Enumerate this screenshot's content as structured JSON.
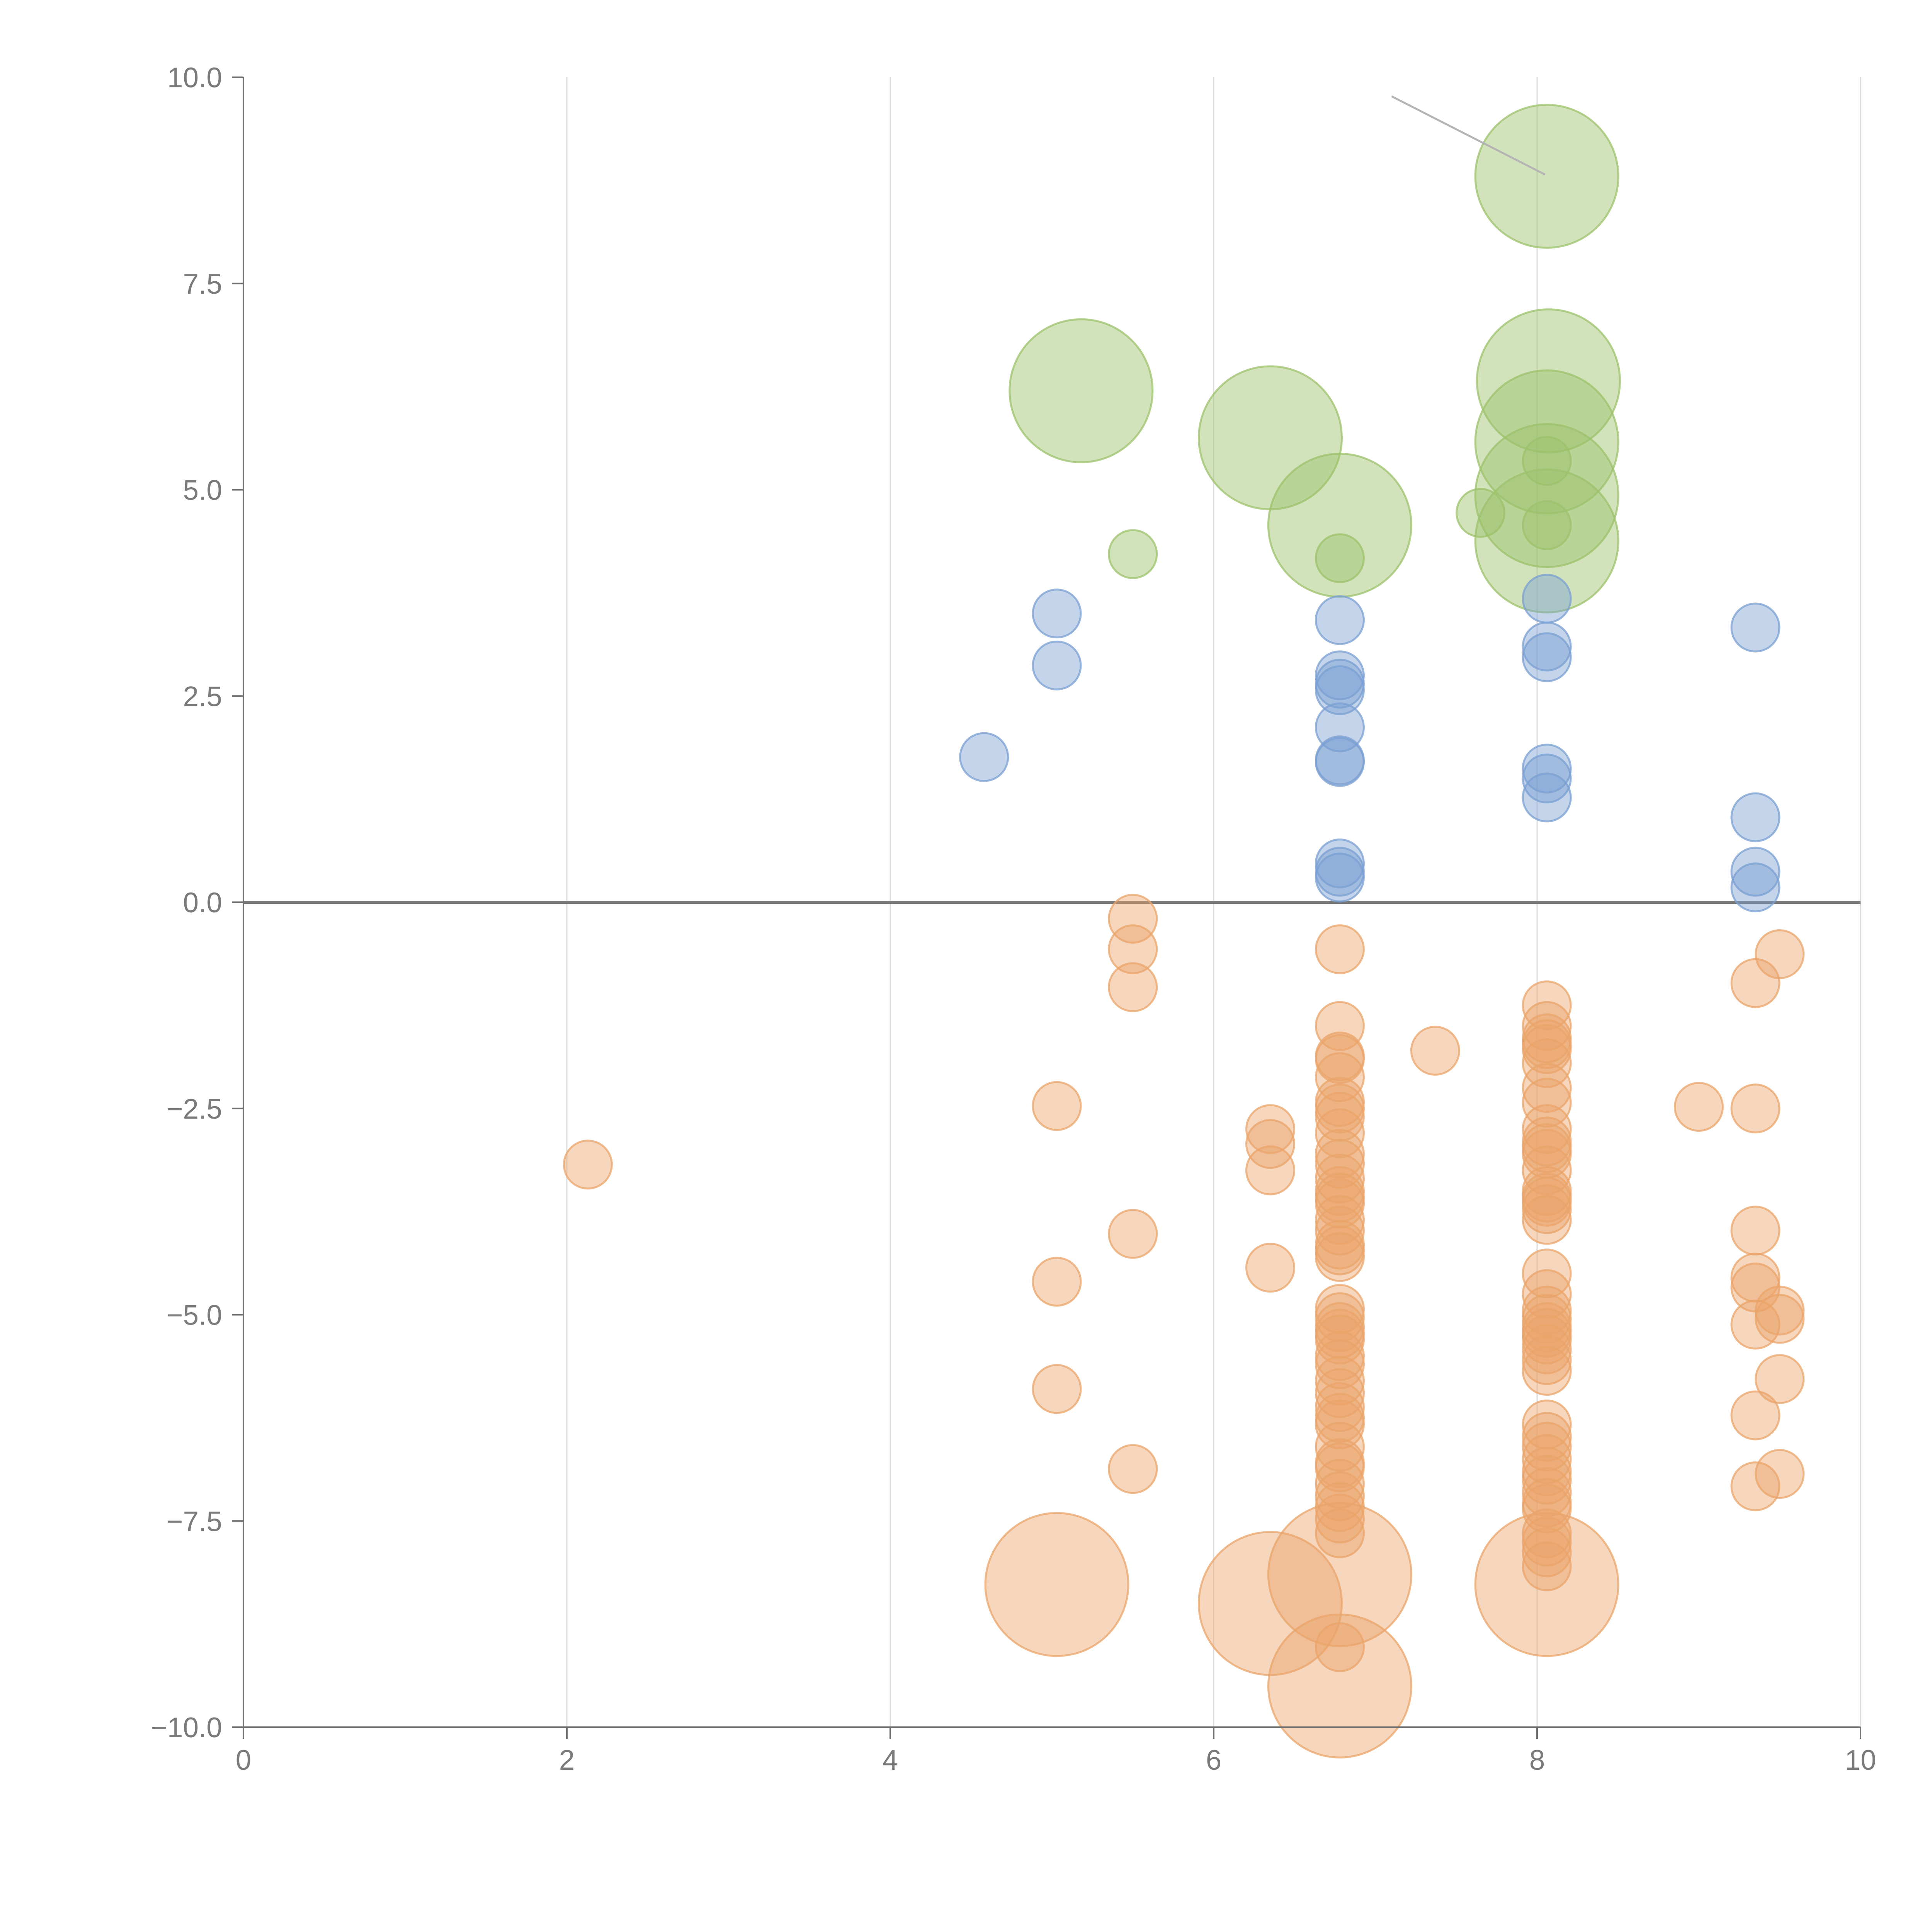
{
  "chart_data": {
    "type": "scatter",
    "title": "",
    "xlabel": "",
    "ylabel": "",
    "xlim": [
      0,
      10
    ],
    "ylim": [
      -10,
      10
    ],
    "x_ticks": [
      0,
      2,
      4,
      6,
      8,
      10
    ],
    "x_tick_labels": [
      "0",
      "2",
      "4",
      "6",
      "8",
      "10"
    ],
    "y_ticks": [
      10,
      7.5,
      5,
      2.5,
      0,
      -2.5,
      -5,
      -7.5,
      -10
    ],
    "y_tick_labels": [
      "10.0",
      "7.5",
      "5.0",
      "2.5",
      "0.0",
      "−2.5",
      "−5.0",
      "−7.5",
      "−10.0"
    ],
    "grid": "vertical",
    "zero_line": 0,
    "annotation": {
      "from": [
        7.1,
        9.77
      ],
      "to": [
        8.05,
        8.82
      ]
    },
    "series": [
      {
        "name": "green",
        "color": "#9cc26b",
        "points": [
          [
            8.06,
            8.8,
            2
          ],
          [
            5.18,
            6.2,
            2
          ],
          [
            8.07,
            6.32,
            2
          ],
          [
            6.35,
            5.63,
            2
          ],
          [
            8.06,
            5.58,
            2
          ],
          [
            8.06,
            5.35,
            0.8
          ],
          [
            8.06,
            4.93,
            2
          ],
          [
            6.78,
            4.57,
            2
          ],
          [
            7.65,
            4.72,
            0.8
          ],
          [
            8.06,
            4.38,
            2
          ],
          [
            8.06,
            4.57,
            0.8
          ],
          [
            6.78,
            4.17,
            0.8
          ],
          [
            5.5,
            4.22,
            0.8
          ]
        ]
      },
      {
        "name": "blue",
        "color": "#7a9fd2",
        "points": [
          [
            5.03,
            3.5,
            0.8
          ],
          [
            5.03,
            2.87,
            0.8
          ],
          [
            4.58,
            1.76,
            0.8
          ],
          [
            6.78,
            3.42,
            0.8
          ],
          [
            6.78,
            2.75,
            0.8
          ],
          [
            6.78,
            2.65,
            0.8
          ],
          [
            6.78,
            2.57,
            0.8
          ],
          [
            6.78,
            2.12,
            0.8
          ],
          [
            6.78,
            1.72,
            0.8
          ],
          [
            6.78,
            1.7,
            0.8
          ],
          [
            6.78,
            0.47,
            0.8
          ],
          [
            6.78,
            0.37,
            0.8
          ],
          [
            6.78,
            0.3,
            0.8
          ],
          [
            8.06,
            3.68,
            0.8
          ],
          [
            8.06,
            3.1,
            0.8
          ],
          [
            8.06,
            2.97,
            0.8
          ],
          [
            8.06,
            1.62,
            0.8
          ],
          [
            8.06,
            1.5,
            0.8
          ],
          [
            8.06,
            1.27,
            0.8
          ],
          [
            9.35,
            3.33,
            0.8
          ],
          [
            9.35,
            1.03,
            0.8
          ],
          [
            9.35,
            0.37,
            0.8
          ],
          [
            9.35,
            0.18,
            0.8
          ]
        ]
      },
      {
        "name": "orange",
        "color": "#eaa46a",
        "points": [
          [
            2.13,
            -3.18,
            0.8
          ],
          [
            5.03,
            -2.47,
            0.8
          ],
          [
            5.03,
            -4.6,
            0.8
          ],
          [
            5.03,
            -5.9,
            0.8
          ],
          [
            5.03,
            -8.27,
            2
          ],
          [
            5.5,
            -0.2,
            0.8
          ],
          [
            5.5,
            -0.57,
            0.8
          ],
          [
            5.5,
            -1.03,
            0.8
          ],
          [
            5.5,
            -4.02,
            0.8
          ],
          [
            5.5,
            -6.87,
            0.8
          ],
          [
            6.35,
            -2.75,
            0.8
          ],
          [
            6.35,
            -2.93,
            0.8
          ],
          [
            6.35,
            -3.25,
            0.8
          ],
          [
            6.35,
            -4.43,
            0.8
          ],
          [
            6.35,
            -8.5,
            2
          ],
          [
            7.37,
            -1.8,
            0.8
          ],
          [
            6.78,
            -0.57,
            0.8
          ],
          [
            6.78,
            -1.5,
            0.8
          ],
          [
            6.78,
            -1.87,
            0.8
          ],
          [
            6.78,
            -1.9,
            0.8
          ],
          [
            6.78,
            -2.12,
            0.8
          ],
          [
            6.78,
            -2.42,
            0.8
          ],
          [
            6.78,
            -2.5,
            0.8
          ],
          [
            6.78,
            -2.6,
            0.8
          ],
          [
            6.78,
            -2.8,
            0.8
          ],
          [
            6.78,
            -3.05,
            0.8
          ],
          [
            6.78,
            -3.17,
            0.8
          ],
          [
            6.78,
            -3.35,
            0.8
          ],
          [
            6.78,
            -3.5,
            0.8
          ],
          [
            6.78,
            -3.58,
            0.8
          ],
          [
            6.78,
            -3.65,
            0.8
          ],
          [
            6.78,
            -3.85,
            0.8
          ],
          [
            6.78,
            -3.98,
            0.8
          ],
          [
            6.78,
            -4.15,
            0.8
          ],
          [
            6.78,
            -4.22,
            0.8
          ],
          [
            6.78,
            -4.3,
            0.8
          ],
          [
            6.78,
            -4.93,
            0.8
          ],
          [
            6.78,
            -5.03,
            0.8
          ],
          [
            6.78,
            -5.15,
            0.8
          ],
          [
            6.78,
            -5.23,
            0.8
          ],
          [
            6.78,
            -5.3,
            0.8
          ],
          [
            6.78,
            -5.5,
            0.8
          ],
          [
            6.78,
            -5.6,
            0.8
          ],
          [
            6.78,
            -5.8,
            0.8
          ],
          [
            6.78,
            -5.95,
            0.8
          ],
          [
            6.78,
            -6.12,
            0.8
          ],
          [
            6.78,
            -6.25,
            0.8
          ],
          [
            6.78,
            -6.33,
            0.8
          ],
          [
            6.78,
            -6.6,
            0.8
          ],
          [
            6.78,
            -6.8,
            0.8
          ],
          [
            6.78,
            -6.85,
            0.8
          ],
          [
            6.78,
            -7.05,
            0.8
          ],
          [
            6.78,
            -7.2,
            0.8
          ],
          [
            6.78,
            -7.33,
            0.8
          ],
          [
            6.78,
            -7.47,
            0.8
          ],
          [
            6.78,
            -7.65,
            0.8
          ],
          [
            6.78,
            -8.15,
            2
          ],
          [
            6.78,
            -9.03,
            0.8
          ],
          [
            6.78,
            -9.5,
            2
          ],
          [
            8.06,
            -1.25,
            0.8
          ],
          [
            8.06,
            -1.5,
            0.8
          ],
          [
            8.06,
            -1.65,
            0.8
          ],
          [
            8.06,
            -1.72,
            0.8
          ],
          [
            8.06,
            -1.78,
            0.8
          ],
          [
            8.06,
            -1.95,
            0.8
          ],
          [
            8.06,
            -2.25,
            0.8
          ],
          [
            8.06,
            -2.43,
            0.8
          ],
          [
            8.06,
            -2.75,
            0.8
          ],
          [
            8.06,
            -2.9,
            0.8
          ],
          [
            8.06,
            -2.98,
            0.8
          ],
          [
            8.06,
            -3.05,
            0.8
          ],
          [
            8.06,
            -3.25,
            0.8
          ],
          [
            8.06,
            -3.5,
            0.8
          ],
          [
            8.06,
            -3.58,
            0.8
          ],
          [
            8.06,
            -3.63,
            0.8
          ],
          [
            8.06,
            -3.72,
            0.8
          ],
          [
            8.06,
            -3.85,
            0.8
          ],
          [
            8.06,
            -4.5,
            0.8
          ],
          [
            8.06,
            -4.75,
            0.8
          ],
          [
            8.06,
            -4.95,
            0.8
          ],
          [
            8.06,
            -5.05,
            0.8
          ],
          [
            8.06,
            -5.15,
            0.8
          ],
          [
            8.06,
            -5.22,
            0.8
          ],
          [
            8.06,
            -5.3,
            0.8
          ],
          [
            8.06,
            -5.42,
            0.8
          ],
          [
            8.06,
            -5.55,
            0.8
          ],
          [
            8.06,
            -5.68,
            0.8
          ],
          [
            8.06,
            -6.33,
            0.8
          ],
          [
            8.06,
            -6.48,
            0.8
          ],
          [
            8.06,
            -6.6,
            0.8
          ],
          [
            8.06,
            -6.75,
            0.8
          ],
          [
            8.06,
            -6.9,
            0.8
          ],
          [
            8.06,
            -7.0,
            0.8
          ],
          [
            8.06,
            -7.15,
            0.8
          ],
          [
            8.06,
            -7.28,
            0.8
          ],
          [
            8.06,
            -7.35,
            0.8
          ],
          [
            8.06,
            -7.65,
            0.8
          ],
          [
            8.06,
            -7.75,
            0.8
          ],
          [
            8.06,
            -7.88,
            0.8
          ],
          [
            8.06,
            -8.05,
            0.8
          ],
          [
            8.06,
            -8.27,
            2
          ],
          [
            9.0,
            -2.48,
            0.8
          ],
          [
            9.35,
            -0.98,
            0.8
          ],
          [
            9.35,
            -2.5,
            0.8
          ],
          [
            9.35,
            -3.98,
            0.8
          ],
          [
            9.35,
            -4.55,
            0.8
          ],
          [
            9.35,
            -4.67,
            0.8
          ],
          [
            9.35,
            -5.12,
            0.8
          ],
          [
            9.35,
            -6.22,
            0.8
          ],
          [
            9.35,
            -7.08,
            0.8
          ],
          [
            9.5,
            -0.63,
            0.8
          ],
          [
            9.5,
            -4.95,
            0.8
          ],
          [
            9.5,
            -5.05,
            0.8
          ],
          [
            9.5,
            -5.78,
            0.8
          ],
          [
            9.5,
            -6.93,
            0.8
          ]
        ]
      }
    ]
  }
}
